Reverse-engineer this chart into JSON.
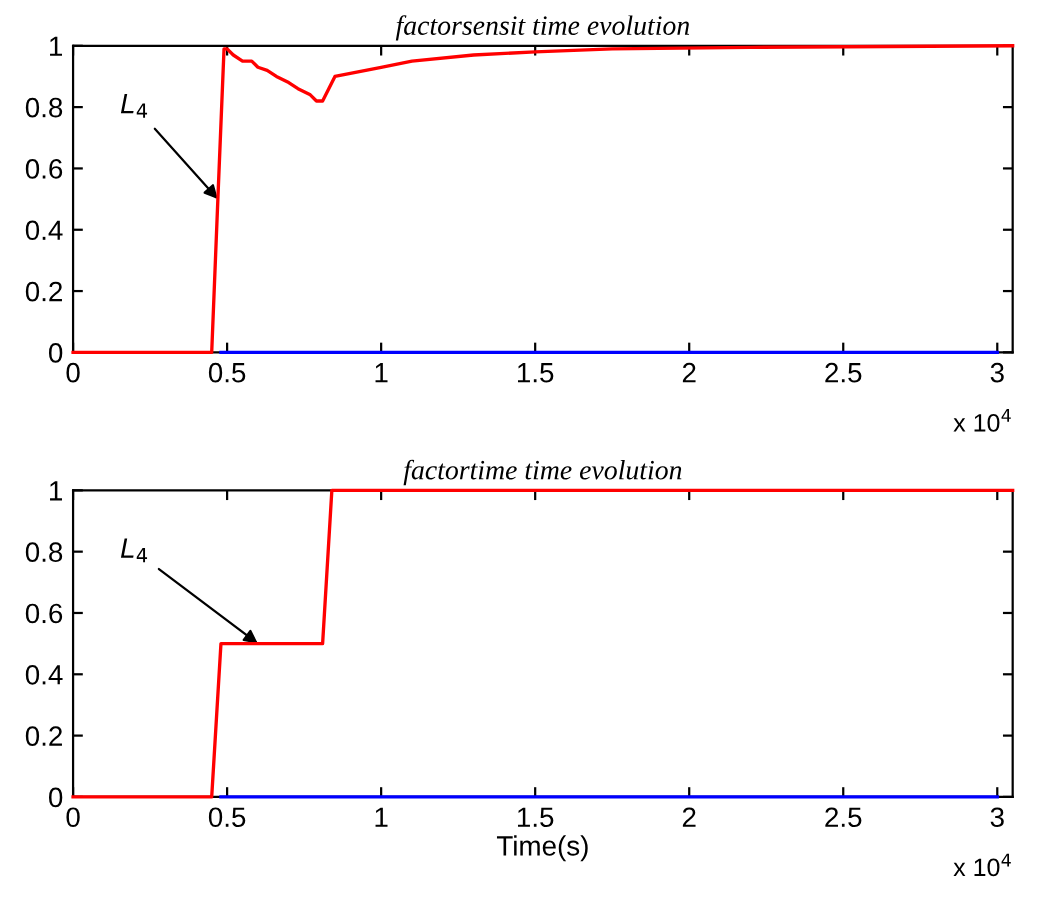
{
  "chart_data": [
    {
      "type": "line",
      "title": "factorsensit time evolution",
      "xlim": [
        0,
        3.05
      ],
      "ylim": [
        0,
        1
      ],
      "xticks": [
        0,
        0.5,
        1,
        1.5,
        2,
        2.5,
        3
      ],
      "yticks": [
        0,
        0.2,
        0.4,
        0.6,
        0.8,
        1
      ],
      "grid": false,
      "series": [
        {
          "color": "#0000ff",
          "x": [
            0.48,
            3.0
          ],
          "values": [
            0,
            0
          ]
        },
        {
          "color": "#ff0000",
          "x": [
            0,
            0.45,
            0.47,
            0.49,
            0.5,
            0.52,
            0.55,
            0.58,
            0.6,
            0.63,
            0.66,
            0.7,
            0.73,
            0.77,
            0.79,
            0.81,
            0.83,
            0.85,
            0.9,
            1.0,
            1.1,
            1.3,
            1.5,
            1.75,
            2.2,
            3.05
          ],
          "values": [
            0,
            0,
            0.5,
            0.99,
            0.99,
            0.97,
            0.95,
            0.95,
            0.93,
            0.92,
            0.9,
            0.88,
            0.86,
            0.84,
            0.82,
            0.82,
            0.86,
            0.9,
            0.91,
            0.93,
            0.95,
            0.97,
            0.98,
            0.99,
            0.995,
            1
          ]
        }
      ],
      "annotations": [
        {
          "text": "L$_{4}$",
          "x": 0.47,
          "y": 0.5
        },
        "x 10$^{4}$"
      ]
    },
    {
      "type": "line",
      "title": "factortime time evolution",
      "xlabel": "Time(s)",
      "xlim": [
        0,
        3.05
      ],
      "ylim": [
        0,
        1
      ],
      "xticks": [
        0,
        0.5,
        1,
        1.5,
        2,
        2.5,
        3
      ],
      "yticks": [
        0,
        0.2,
        0.4,
        0.6,
        0.8,
        1
      ],
      "grid": false,
      "series": [
        {
          "color": "#0000ff",
          "x": [
            0.48,
            3.0
          ],
          "values": [
            0,
            0
          ]
        },
        {
          "color": "#ff0000",
          "x": [
            0,
            0.45,
            0.48,
            0.81,
            0.84,
            3.05
          ],
          "values": [
            0,
            0,
            0.5,
            0.5,
            1,
            1
          ]
        }
      ],
      "annotations": [
        {
          "text": "L$_{4}$",
          "x": 0.6,
          "y": 0.5
        },
        "x 10$^{4}$"
      ]
    }
  ]
}
